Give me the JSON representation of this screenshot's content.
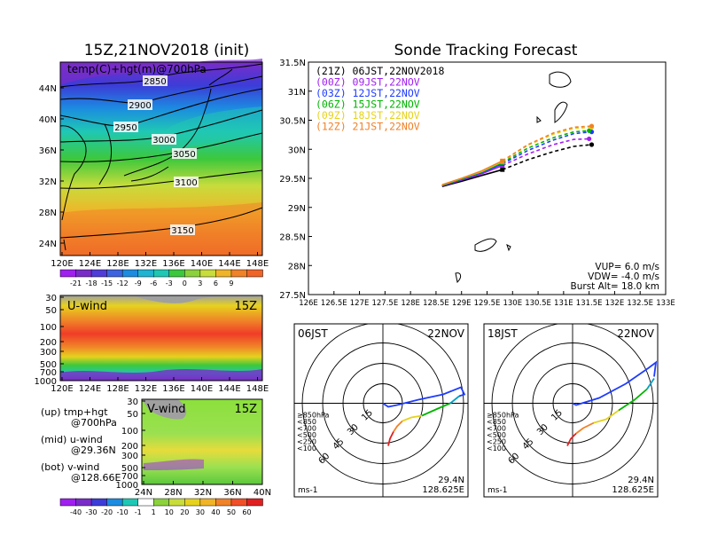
{
  "map_panel": {
    "title": "15Z,21NOV2018 (init)",
    "label": "temp(C)+hgt(m)@700hPa",
    "lat_ticks": [
      "24N",
      "28N",
      "32N",
      "36N",
      "40N",
      "44N"
    ],
    "lon_ticks": [
      "120E",
      "124E",
      "128E",
      "132E",
      "136E",
      "140E",
      "144E",
      "148E"
    ],
    "contour_labels": [
      "2850",
      "2900",
      "2950",
      "3000",
      "3050",
      "3100",
      "3150"
    ],
    "colorbar_labels": [
      "-21",
      "-18",
      "-15",
      "-12",
      "-9",
      "-6",
      "-3",
      "0",
      "3",
      "6",
      "9"
    ]
  },
  "uwind_panel": {
    "label": "U-wind",
    "time": "15Z",
    "y_ticks": [
      "30",
      "50",
      "100",
      "200",
      "300",
      "500",
      "700",
      "1000"
    ],
    "x_ticks": [
      "120E",
      "124E",
      "128E",
      "132E",
      "136E",
      "140E",
      "144E",
      "148E"
    ]
  },
  "vwind_panel": {
    "label": "V-wind",
    "time": "15Z",
    "y_ticks": [
      "30",
      "50",
      "100",
      "200",
      "300",
      "500",
      "700",
      "1000"
    ],
    "x_ticks": [
      "24N",
      "28N",
      "32N",
      "36N",
      "40N"
    ],
    "colorbar_labels": [
      "-40",
      "-30",
      "-20",
      "-10",
      "-1",
      "1",
      "10",
      "20",
      "30",
      "40",
      "50",
      "60"
    ]
  },
  "legend_text": {
    "up": [
      "(up) tmp+hgt",
      "@700hPa"
    ],
    "mid": [
      "(mid) u-wind",
      "@29.36N"
    ],
    "bot": [
      "(bot) v-wind",
      "@128.66E"
    ]
  },
  "chart_data": {
    "type": "line",
    "title": "Sonde Tracking Forecast",
    "xlim": [
      126,
      133
    ],
    "ylim": [
      27.5,
      31.5
    ],
    "x_ticks": [
      "126E",
      "126.5E",
      "127E",
      "127.5E",
      "128E",
      "128.5E",
      "129E",
      "129.5E",
      "130E",
      "130.5E",
      "131E",
      "131.5E",
      "132E",
      "132.5E",
      "133E"
    ],
    "y_ticks": [
      "27.5N",
      "28N",
      "28.5N",
      "29N",
      "29.5N",
      "30N",
      "30.5N",
      "31N",
      "31.5N"
    ],
    "series": [
      {
        "name": "(21Z)  06JST,22NOV2018",
        "color": "#000000",
        "points": [
          [
            128.62,
            29.36
          ],
          [
            129.0,
            29.45
          ],
          [
            129.4,
            29.55
          ],
          [
            129.8,
            29.65
          ],
          [
            130.3,
            29.82
          ],
          [
            130.8,
            29.96
          ],
          [
            131.2,
            30.05
          ],
          [
            131.55,
            30.08
          ]
        ]
      },
      {
        "name": "(00Z)  09JST,22NOV",
        "color": "#a020f0",
        "points": [
          [
            128.62,
            29.37
          ],
          [
            129.0,
            29.47
          ],
          [
            129.4,
            29.58
          ],
          [
            129.8,
            29.72
          ],
          [
            130.3,
            29.92
          ],
          [
            130.8,
            30.08
          ],
          [
            131.2,
            30.17
          ],
          [
            131.5,
            30.18
          ]
        ]
      },
      {
        "name": "(03Z)  12JST,22NOV",
        "color": "#1e3cff",
        "points": [
          [
            128.62,
            29.38
          ],
          [
            129.0,
            29.48
          ],
          [
            129.4,
            29.6
          ],
          [
            129.8,
            29.75
          ],
          [
            130.3,
            29.98
          ],
          [
            130.8,
            30.16
          ],
          [
            131.2,
            30.27
          ],
          [
            131.55,
            30.3
          ]
        ]
      },
      {
        "name": "(06Z)  15JST,22NOV",
        "color": "#00b400",
        "points": [
          [
            128.62,
            29.38
          ],
          [
            129.0,
            29.49
          ],
          [
            129.4,
            29.61
          ],
          [
            129.8,
            29.77
          ],
          [
            130.3,
            30.02
          ],
          [
            130.8,
            30.2
          ],
          [
            131.2,
            30.3
          ],
          [
            131.5,
            30.32
          ]
        ]
      },
      {
        "name": "(09Z)  18JST,22NOV",
        "color": "#e6d21e",
        "points": [
          [
            128.62,
            29.39
          ],
          [
            129.0,
            29.5
          ],
          [
            129.4,
            29.62
          ],
          [
            129.8,
            29.79
          ],
          [
            130.3,
            30.07
          ],
          [
            130.8,
            30.26
          ],
          [
            131.2,
            30.36
          ],
          [
            131.55,
            30.38
          ]
        ]
      },
      {
        "name": "(12Z)  21JST,22NOV",
        "color": "#f08228",
        "points": [
          [
            128.62,
            29.39
          ],
          [
            129.0,
            29.5
          ],
          [
            129.4,
            29.63
          ],
          [
            129.8,
            29.8
          ],
          [
            130.3,
            30.08
          ],
          [
            130.8,
            30.28
          ],
          [
            131.2,
            30.38
          ],
          [
            131.55,
            30.4
          ]
        ]
      }
    ],
    "params": [
      "VUP= 6.0 m/s",
      "VDW= -4.0 m/s",
      "Burst Alt= 18.0 km"
    ]
  },
  "hodographs": [
    {
      "time": "06JST",
      "date": "22NOV",
      "lat": "29.4N",
      "lon": "128.625E",
      "unit": "ms-1",
      "ring_labels": [
        "15",
        "30",
        "45",
        "60"
      ],
      "pressure_legend": [
        "≥850hPa",
        "<850",
        "<700",
        "<500",
        "<250",
        "<100"
      ],
      "legend_colors": [
        "#e02020",
        "#f08228",
        "#e6d21e",
        "#00b400",
        "#00a0c8",
        "#1e3cff"
      ]
    },
    {
      "time": "18JST",
      "date": "22NOV",
      "lat": "29.4N",
      "lon": "128.625E",
      "unit": "ms-1",
      "ring_labels": [
        "15",
        "30",
        "45",
        "60"
      ],
      "pressure_legend": [
        "≥850hPa",
        "<850",
        "<700",
        "<500",
        "<250",
        "<100"
      ],
      "legend_colors": [
        "#e02020",
        "#f08228",
        "#e6d21e",
        "#00b400",
        "#00a0c8",
        "#1e3cff"
      ]
    }
  ]
}
